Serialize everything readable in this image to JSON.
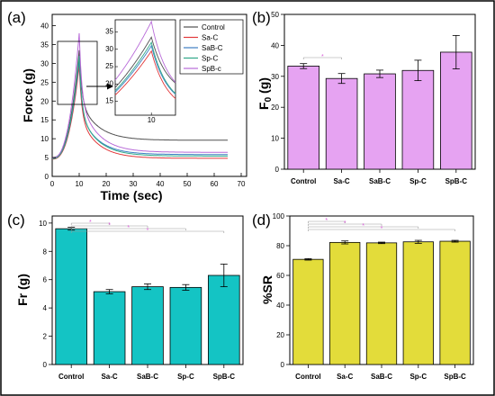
{
  "figure": {
    "outer_border": true
  },
  "chart_data": [
    {
      "id": "a",
      "panel_label": "(a)",
      "type": "line",
      "xlabel": "Time (sec)",
      "ylabel": "Force (g)",
      "xlim": [
        0,
        72
      ],
      "ylim": [
        0,
        43
      ],
      "xticks": [
        0,
        10,
        20,
        30,
        40,
        50,
        60,
        70
      ],
      "yticks": [
        0,
        5,
        10,
        15,
        20,
        25,
        30,
        35,
        40
      ],
      "legend_position": "top-right",
      "series": [
        {
          "name": "Control",
          "color": "#505050",
          "peak": 33.5,
          "plateau": 9.6,
          "start": 5.0
        },
        {
          "name": "Sa-C",
          "color": "#e2383b",
          "peak": 29.5,
          "plateau": 4.8,
          "start": 4.6
        },
        {
          "name": "SaB-C",
          "color": "#3d7fc3",
          "peak": 31.0,
          "plateau": 5.8,
          "start": 4.8
        },
        {
          "name": "Sp-C",
          "color": "#2fa888",
          "peak": 32.0,
          "plateau": 5.4,
          "start": 4.7
        },
        {
          "name": "SpB-c",
          "color": "#b86ad8",
          "peak": 38.0,
          "plateau": 6.4,
          "start": 4.9
        }
      ],
      "peak_time": 10,
      "end_time": 65,
      "inset": {
        "xticks": [
          10
        ],
        "yticks": [
          15,
          20,
          25,
          30,
          35
        ],
        "xlim": [
          7.6,
          11.6
        ],
        "ylim": [
          11,
          38.5
        ]
      }
    },
    {
      "id": "b",
      "panel_label": "(b)",
      "type": "bar",
      "ylabel": "F0 (g)",
      "ylabel_main": "F",
      "ylabel_sub": "0",
      "ylabel_unit": "(g)",
      "categories": [
        "Control",
        "Sa-C",
        "SaB-C",
        "Sp-C",
        "SpB-C"
      ],
      "values": [
        33.3,
        29.3,
        30.8,
        31.9,
        37.8
      ],
      "errors": [
        0.8,
        1.6,
        1.2,
        3.3,
        5.4
      ],
      "ylim": [
        0,
        50
      ],
      "yticks": [
        0,
        10,
        20,
        30,
        40,
        50
      ],
      "bar_color": "#e6a3f2",
      "significance_brackets": [
        {
          "from": 0,
          "to": 1,
          "mark": "*"
        }
      ]
    },
    {
      "id": "c",
      "panel_label": "(c)",
      "type": "bar",
      "ylabel": "Fr (g)",
      "categories": [
        "Control",
        "Sa-C",
        "SaB-C",
        "Sp-C",
        "SpB-C"
      ],
      "values": [
        9.6,
        5.15,
        5.5,
        5.45,
        6.3
      ],
      "errors": [
        0.1,
        0.15,
        0.2,
        0.2,
        0.8
      ],
      "ylim": [
        0,
        10.5
      ],
      "yticks": [
        0,
        2,
        4,
        6,
        8,
        10
      ],
      "bar_color": "#14c4c4",
      "significance_brackets": [
        {
          "from": 0,
          "to": 1,
          "mark": "*"
        },
        {
          "from": 0,
          "to": 2,
          "mark": "*"
        },
        {
          "from": 0,
          "to": 3,
          "mark": "*"
        },
        {
          "from": 0,
          "to": 4,
          "mark": "*"
        }
      ]
    },
    {
      "id": "d",
      "panel_label": "(d)",
      "type": "bar",
      "ylabel": "%SR",
      "categories": [
        "Control",
        "Sa-C",
        "SaB-C",
        "Sp-C",
        "SpB-C"
      ],
      "values": [
        70.8,
        82.2,
        81.9,
        82.6,
        83.0
      ],
      "errors": [
        0.5,
        1.0,
        0.5,
        1.0,
        0.6
      ],
      "ylim": [
        0,
        100
      ],
      "yticks": [
        0,
        20,
        40,
        60,
        80,
        100
      ],
      "bar_color": "#e3dc3a",
      "significance_brackets": [
        {
          "from": 0,
          "to": 1,
          "mark": "*"
        },
        {
          "from": 0,
          "to": 2,
          "mark": "*"
        },
        {
          "from": 0,
          "to": 3,
          "mark": "*"
        },
        {
          "from": 0,
          "to": 4,
          "mark": "*"
        }
      ]
    }
  ]
}
